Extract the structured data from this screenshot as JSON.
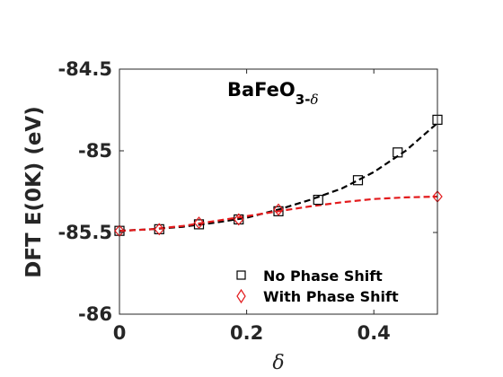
{
  "chart_data": {
    "type": "line",
    "title": "BaFeO",
    "title_subscript": "3-",
    "title_subscript_symbol": "δ",
    "xlabel": "δ",
    "ylabel": "DFT E(0K) (eV)",
    "xlim": [
      0,
      0.5
    ],
    "ylim": [
      -86,
      -84.5
    ],
    "xticks": [
      0,
      0.2,
      0.4
    ],
    "xtick_labels": [
      "0",
      "0.2",
      "0.4"
    ],
    "yticks": [
      -86,
      -85.5,
      -85,
      -84.5
    ],
    "ytick_labels": [
      "-86",
      "-85.5",
      "-85",
      "-84.5"
    ],
    "grid": false,
    "legend_position": "lower-right",
    "series": [
      {
        "name": "No Phase Shift",
        "marker": "square",
        "color": "#000000",
        "points": [
          {
            "x": 0,
            "y": -85.49
          },
          {
            "x": 0.0625,
            "y": -85.48
          },
          {
            "x": 0.125,
            "y": -85.45
          },
          {
            "x": 0.1875,
            "y": -85.42
          },
          {
            "x": 0.25,
            "y": -85.37
          },
          {
            "x": 0.3125,
            "y": -85.3
          },
          {
            "x": 0.375,
            "y": -85.18
          },
          {
            "x": 0.4375,
            "y": -85.01
          },
          {
            "x": 0.5,
            "y": -84.81
          }
        ],
        "fit": [
          {
            "x": 0,
            "y": -85.49
          },
          {
            "x": 0.05,
            "y": -85.48
          },
          {
            "x": 0.1,
            "y": -85.465
          },
          {
            "x": 0.15,
            "y": -85.44
          },
          {
            "x": 0.2,
            "y": -85.41
          },
          {
            "x": 0.25,
            "y": -85.36
          },
          {
            "x": 0.3,
            "y": -85.3
          },
          {
            "x": 0.35,
            "y": -85.23
          },
          {
            "x": 0.4,
            "y": -85.13
          },
          {
            "x": 0.45,
            "y": -85.0
          },
          {
            "x": 0.5,
            "y": -84.83
          }
        ]
      },
      {
        "name": "With Phase Shift",
        "marker": "diamond",
        "color": "#e31a1c",
        "points": [
          {
            "x": 0,
            "y": -85.49
          },
          {
            "x": 0.0625,
            "y": -85.48
          },
          {
            "x": 0.125,
            "y": -85.44
          },
          {
            "x": 0.1875,
            "y": -85.42
          },
          {
            "x": 0.25,
            "y": -85.36
          },
          {
            "x": 0.5,
            "y": -85.28
          }
        ],
        "fit": [
          {
            "x": 0,
            "y": -85.49
          },
          {
            "x": 0.05,
            "y": -85.48
          },
          {
            "x": 0.1,
            "y": -85.46
          },
          {
            "x": 0.15,
            "y": -85.43
          },
          {
            "x": 0.2,
            "y": -85.4
          },
          {
            "x": 0.25,
            "y": -85.37
          },
          {
            "x": 0.3,
            "y": -85.34
          },
          {
            "x": 0.35,
            "y": -85.315
          },
          {
            "x": 0.4,
            "y": -85.295
          },
          {
            "x": 0.45,
            "y": -85.285
          },
          {
            "x": 0.5,
            "y": -85.28
          }
        ]
      }
    ]
  }
}
